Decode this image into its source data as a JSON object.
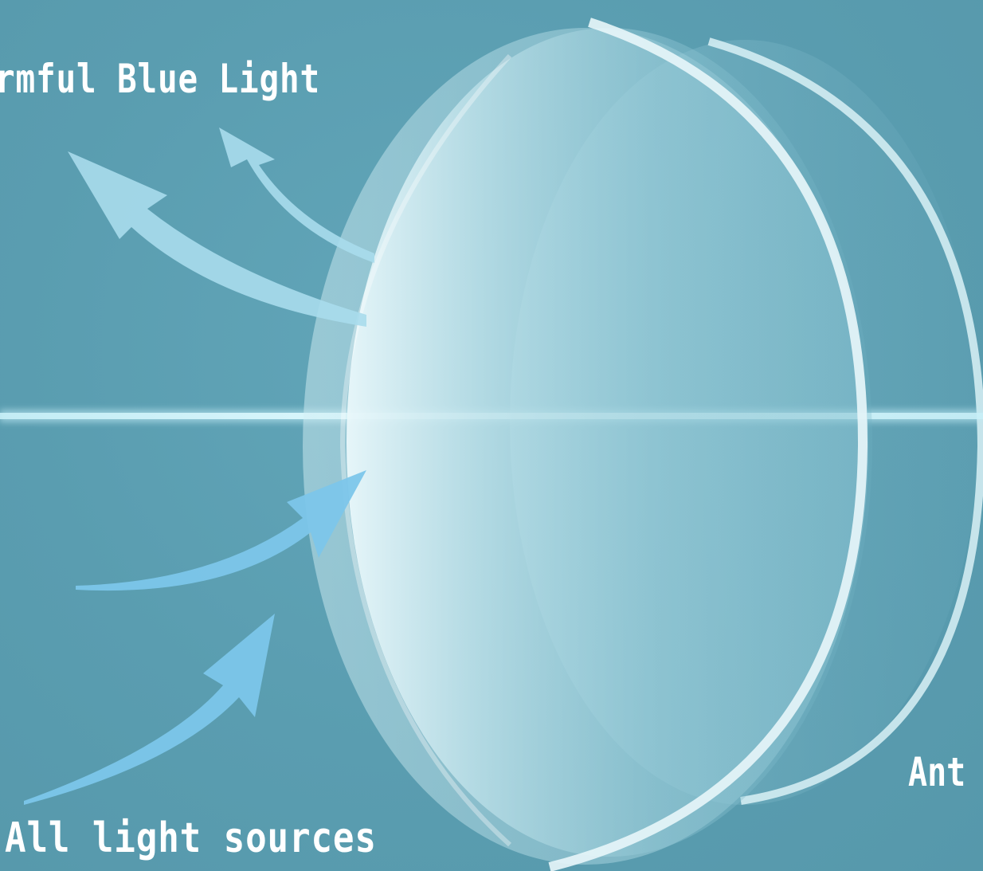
{
  "labels": {
    "harmful_blue_light": "rmful Blue Light",
    "all_light_sources": "All light sources",
    "right_cut_label": "Ant"
  },
  "colors": {
    "background": "#5c9fb2",
    "harmful_arrow": "#a9dcec",
    "incoming_arrow": "#7cc6ea",
    "light_line": "#bfeaf4",
    "lens_rim": "#e8f6f9"
  },
  "icons": {
    "front_lens": "lens-disc",
    "back_lens": "lens-disc",
    "arrows": "curved-arrow"
  }
}
